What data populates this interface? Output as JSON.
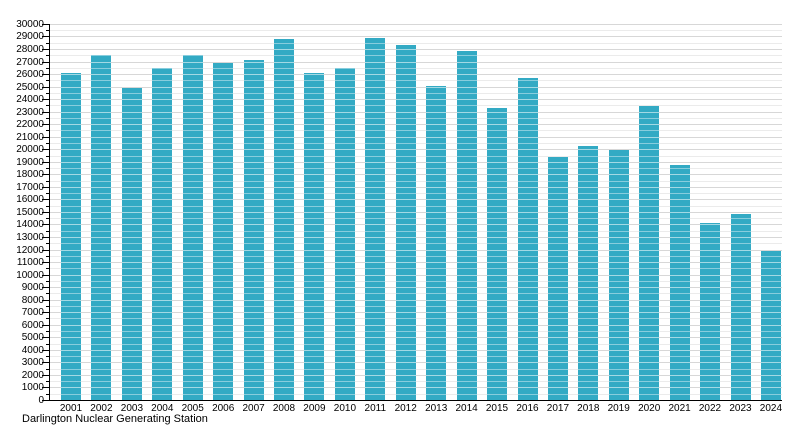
{
  "chart_data": {
    "type": "bar",
    "title": "",
    "caption": "Darlington Nuclear Generating Station",
    "xlabel": "",
    "ylabel": "",
    "categories": [
      "2001",
      "2002",
      "2003",
      "2004",
      "2005",
      "2006",
      "2007",
      "2008",
      "2009",
      "2010",
      "2011",
      "2012",
      "2013",
      "2014",
      "2015",
      "2016",
      "2017",
      "2018",
      "2019",
      "2020",
      "2021",
      "2022",
      "2023",
      "2024"
    ],
    "values": [
      26150,
      27600,
      24900,
      26550,
      27550,
      26950,
      27200,
      28800,
      26100,
      26500,
      28900,
      28350,
      25100,
      27900,
      23350,
      25700,
      19400,
      20300,
      20000,
      23500,
      18750,
      14150,
      14850,
      11950
    ],
    "ylim": [
      0,
      30000
    ],
    "y_major_step": 1000,
    "y_minor_step": 500,
    "y_tick_labels_every": 1000,
    "grid": "horizontal, minor every 500 (light), major every 1000 (darker), drawn faintly over bars",
    "legend": "none",
    "colors": {
      "bar": "#33aac4",
      "major_grid": "#a6a6a6",
      "minor_grid": "#dcdcdc",
      "major_grid_over_bar": "rgba(255,255,255,0.55)",
      "minor_grid_over_bar": "rgba(255,255,255,0.42)",
      "axis": "#000000",
      "text": "#000000"
    }
  }
}
